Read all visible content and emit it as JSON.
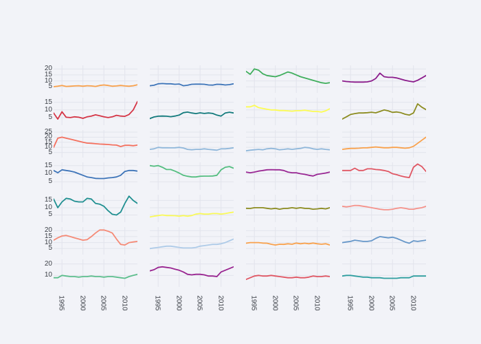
{
  "page": {
    "background_color": "#f2f3f8",
    "gridline_color": "#e2e4ec",
    "tick_label_color": "#3b3f46"
  },
  "chart_data": {
    "type": "line",
    "layout": "small-multiples",
    "title": "",
    "xlabel": "",
    "ylabel": "",
    "grid": {
      "rows": 7,
      "cols": 4,
      "gridlines": true,
      "legend": "none"
    },
    "x_range": [
      1993,
      2013
    ],
    "x_ticks": [
      1995,
      2000,
      2005,
      2010
    ],
    "x_tick_labels": [
      "1995",
      "2000",
      "2005",
      "2010"
    ],
    "rows": [
      {
        "yticks": [
          5,
          10,
          15,
          20
        ],
        "ymax": 23,
        "series": [
          {
            "name": "r1c1",
            "color": "#F9A14B",
            "values": [
              5.2,
              5.6,
              6.2,
              5.4,
              5.6,
              5.8,
              6.0,
              5.6,
              6.0,
              5.8,
              5.4,
              6.2,
              6.6,
              6.2,
              5.6,
              5.8,
              6.2,
              5.8,
              5.6,
              6.0,
              6.8
            ]
          },
          {
            "name": "r1c2",
            "color": "#3D74B8",
            "values": [
              6.0,
              6.4,
              7.6,
              7.8,
              7.6,
              7.6,
              7.2,
              7.4,
              6.0,
              6.4,
              7.2,
              7.3,
              7.3,
              7.2,
              6.6,
              6.5,
              7.2,
              7.1,
              6.6,
              6.9,
              7.6
            ]
          },
          {
            "name": "r1c3",
            "color": "#3FAE5C",
            "values": [
              18,
              15.5,
              20,
              19,
              16,
              14.5,
              14,
              13.5,
              14.5,
              16,
              17.5,
              16.5,
              15,
              13.5,
              12.5,
              11.5,
              10.5,
              9.5,
              8.5,
              8,
              8.5
            ]
          },
          {
            "name": "r1c4",
            "color": "#8B1B8B",
            "values": [
              10,
              9.5,
              9.2,
              9,
              9,
              9,
              9.2,
              10,
              12,
              16.5,
              13.5,
              13,
              13,
              12.5,
              11.5,
              10.5,
              9.8,
              9.2,
              10.5,
              12.5,
              14.5
            ]
          }
        ]
      },
      {
        "yticks": [
          5,
          10,
          15
        ],
        "ymax": 18,
        "series": [
          {
            "name": "r2c1",
            "color": "#D53445",
            "values": [
              8,
              4,
              8.8,
              5.2,
              5,
              5.5,
              5.2,
              4.5,
              5.5,
              6,
              6.8,
              6.2,
              5.5,
              5,
              5.5,
              6.5,
              6,
              5.8,
              7,
              10,
              15.5
            ]
          },
          {
            "name": "r2c2",
            "color": "#127A7C",
            "values": [
              4.3,
              5.4,
              5.9,
              6,
              5.9,
              5.6,
              6,
              6.6,
              8.2,
              8.6,
              8,
              7.6,
              8.1,
              7.7,
              8,
              7.7,
              6.6,
              6,
              8,
              8.5,
              8
            ]
          },
          {
            "name": "r2c3",
            "color": "#FCFC52",
            "values": [
              12,
              12,
              13,
              11.5,
              11,
              10.5,
              10,
              10,
              9.6,
              9.6,
              9.4,
              9.2,
              9.5,
              9.5,
              9.8,
              9.4,
              9,
              9,
              8.6,
              9.4,
              10.8
            ]
          },
          {
            "name": "r2c4",
            "color": "#8C8C20",
            "values": [
              4,
              5.5,
              7,
              7.6,
              8,
              8,
              8.2,
              8.5,
              8.1,
              9,
              10,
              9.4,
              8.4,
              8.7,
              8.2,
              7.2,
              6.6,
              8,
              14,
              11.8,
              10.2
            ]
          }
        ]
      },
      {
        "yticks": [
          5,
          10,
          15,
          20,
          25
        ],
        "ymax": 27,
        "series": [
          {
            "name": "r3c1",
            "color": "#F4705E",
            "values": [
              10,
              19,
              20,
              19,
              18,
              17,
              16,
              15,
              14.2,
              14,
              13.6,
              13.2,
              13,
              12.8,
              12.4,
              12.2,
              10.8,
              12,
              12,
              11.6,
              12.2
            ]
          },
          {
            "name": "r3c2",
            "color": "#8FB7DA",
            "values": [
              8,
              8.6,
              10,
              9.6,
              9.6,
              9.5,
              9.6,
              10,
              9.4,
              8,
              7.6,
              8,
              8,
              8.6,
              8,
              7.6,
              7.2,
              8.6,
              8.6,
              9,
              9.6
            ]
          },
          {
            "name": "r3c3",
            "color": "#8FB7DA",
            "values": [
              6.6,
              7.2,
              7.6,
              8,
              7.6,
              8.6,
              9,
              8.6,
              7.6,
              8,
              8.6,
              8,
              8.6,
              9,
              10,
              9.6,
              8.6,
              8,
              8.6,
              8,
              7.6
            ]
          },
          {
            "name": "r3c4",
            "color": "#F9A14B",
            "values": [
              8,
              8.6,
              9,
              9,
              9.2,
              9.5,
              9.6,
              10,
              10.4,
              10,
              9.6,
              9.6,
              10,
              10,
              9.6,
              9.2,
              9.6,
              11,
              14,
              17,
              20
            ]
          }
        ]
      },
      {
        "yticks": [
          5,
          10,
          15
        ],
        "ymax": 17,
        "series": [
          {
            "name": "r4c1",
            "color": "#3D74B8",
            "values": [
              12,
              10.6,
              12.4,
              12,
              11.6,
              11,
              10,
              9,
              8,
              7.6,
              7.1,
              7,
              7,
              7.4,
              7.6,
              8,
              9,
              11.4,
              12,
              12,
              11.6
            ]
          },
          {
            "name": "r4c2",
            "color": "#54BE80",
            "values": [
              15,
              14.6,
              15,
              14,
              12.6,
              12.6,
              11.6,
              10.4,
              9,
              8.4,
              8,
              8,
              8.4,
              8.5,
              8.5,
              8.6,
              9,
              12.4,
              14,
              14.4,
              13.4
            ]
          },
          {
            "name": "r4c3",
            "color": "#992693",
            "values": [
              11,
              10.6,
              11,
              11.6,
              12,
              12.4,
              12.5,
              12.4,
              12.4,
              12,
              11,
              10.6,
              10.6,
              10,
              9.6,
              9,
              8.6,
              9.6,
              10,
              10.4,
              11
            ]
          },
          {
            "name": "r4c4",
            "color": "#E05663",
            "values": [
              12,
              12,
              12,
              13.4,
              12,
              12,
              13,
              13,
              12.6,
              12.4,
              12,
              11.4,
              10,
              9.4,
              8.6,
              8,
              7.6,
              14,
              16,
              14.4,
              11.4
            ]
          }
        ]
      },
      {
        "yticks": [
          5,
          10,
          15
        ],
        "ymax": 19,
        "series": [
          {
            "name": "r5c1",
            "color": "#1F8F90",
            "values": [
              16,
              10,
              14,
              16.5,
              16,
              14.5,
              14,
              14,
              16.5,
              16,
              13,
              12.5,
              11,
              8,
              5.5,
              5,
              7,
              13,
              18,
              15,
              13
            ]
          },
          {
            "name": "r5c2",
            "color": "#FAFA58",
            "values": [
              3.6,
              4.2,
              4.6,
              5,
              4.6,
              4.6,
              4.5,
              4.2,
              4.6,
              4.2,
              4.6,
              5.6,
              6,
              5.6,
              5.6,
              6,
              6,
              5.6,
              6,
              6.5,
              7
            ]
          },
          {
            "name": "r5c3",
            "color": "#8C8C20",
            "values": [
              9.6,
              9.5,
              10,
              10,
              10,
              9.6,
              9.2,
              9.6,
              9,
              9.5,
              9.6,
              10,
              9.6,
              10,
              9.6,
              9.5,
              9,
              9.2,
              9.6,
              9.2,
              10
            ]
          },
          {
            "name": "r5c4",
            "color": "#F5928A",
            "values": [
              11,
              10.6,
              11,
              11.6,
              11.5,
              11,
              10.6,
              10,
              9.5,
              9,
              8.6,
              8.6,
              9,
              9.6,
              10,
              9.6,
              9,
              9,
              9.6,
              10,
              11
            ]
          }
        ]
      },
      {
        "yticks": [
          5,
          10,
          15,
          20
        ],
        "ymax": 23,
        "series": [
          {
            "name": "r6c1",
            "color": "#F58A76",
            "values": [
              12,
              14,
              15.5,
              16,
              15,
              14,
              13,
              12,
              12.5,
              15,
              18,
              20.5,
              20.5,
              19.5,
              18,
              13,
              8.5,
              8,
              10,
              10.5,
              11
            ]
          },
          {
            "name": "r6c2",
            "color": "#AECBE8",
            "values": [
              5,
              5.5,
              6,
              6.5,
              7,
              7,
              6.5,
              6,
              5.5,
              5.5,
              5.5,
              6,
              7,
              7.5,
              8,
              8.5,
              8.5,
              9,
              10,
              11.5,
              13
            ]
          },
          {
            "name": "r6c3",
            "color": "#F9A14B",
            "values": [
              9.5,
              10,
              10,
              10,
              9.6,
              9.5,
              8.6,
              8,
              8.6,
              8.5,
              9,
              8.6,
              9.6,
              9,
              9.5,
              9,
              9.6,
              9,
              8.6,
              9,
              8
            ]
          },
          {
            "name": "r6c4",
            "color": "#6596C8",
            "values": [
              10,
              10.5,
              11,
              12,
              11.5,
              11,
              11,
              11.5,
              13.5,
              15,
              14.5,
              14,
              14.5,
              13.5,
              12,
              10.5,
              9.5,
              11.5,
              11,
              11.5,
              12
            ]
          }
        ]
      },
      {
        "yticks": [
          10,
          20
        ],
        "ymax": 24,
        "series": [
          {
            "name": "r7c1",
            "color": "#5CBE8C",
            "values": [
              8,
              8,
              10,
              9.5,
              9,
              9,
              8.5,
              9,
              9,
              9.5,
              9,
              9,
              8.5,
              9,
              9,
              8.5,
              8,
              7.5,
              9,
              10,
              11
            ]
          },
          {
            "name": "r7c2",
            "color": "#992490",
            "values": [
              14,
              15,
              17,
              17.5,
              17,
              16.5,
              15.5,
              14.5,
              13,
              11,
              10.5,
              11,
              11,
              10.5,
              9.5,
              9.5,
              9,
              13,
              14.5,
              16,
              17.5
            ]
          },
          {
            "name": "r7c3",
            "color": "#E05663",
            "values": [
              6.5,
              8,
              9.5,
              10,
              9.5,
              9.5,
              10,
              9.5,
              9,
              8.5,
              8,
              8,
              8.5,
              8,
              8,
              8.5,
              9.5,
              9,
              9,
              9.5,
              9
            ]
          },
          {
            "name": "r7c4",
            "color": "#2E9E9F",
            "values": [
              9.5,
              10,
              10,
              9.5,
              9,
              8.5,
              8.5,
              8,
              8,
              8,
              7.5,
              7.5,
              7.5,
              7.5,
              8,
              8,
              8,
              9.5,
              9.5,
              9.5,
              9.5
            ]
          }
        ]
      }
    ]
  }
}
